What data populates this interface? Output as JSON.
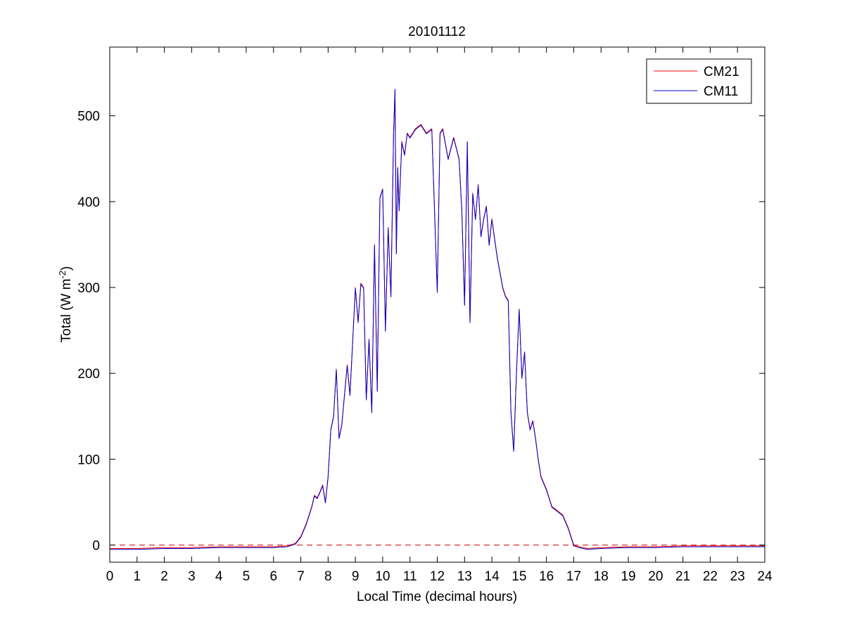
{
  "chart_data": {
    "type": "line",
    "title": "20101112",
    "xlabel": "Local Time (decimal hours)",
    "ylabel": "Total (W m",
    "ylabel_sup": "-2",
    "ylabel_close": ")",
    "xlim": [
      0,
      24
    ],
    "ylim": [
      -20,
      580
    ],
    "xticks": [
      0,
      1,
      2,
      3,
      4,
      5,
      6,
      7,
      8,
      9,
      10,
      11,
      12,
      13,
      14,
      15,
      16,
      17,
      18,
      19,
      20,
      21,
      22,
      23,
      24
    ],
    "yticks": [
      0,
      100,
      200,
      300,
      400,
      500
    ],
    "grid": false,
    "legend_position": "top-right",
    "reference_line": {
      "y": 0,
      "style": "dashed",
      "color": "#cc0000"
    },
    "series": [
      {
        "name": "CM21",
        "color": "#ff0000",
        "x": [
          0,
          1,
          2,
          3,
          4,
          5,
          6,
          6.5,
          6.8,
          7,
          7.2,
          7.4,
          7.5,
          7.6,
          7.7,
          7.8,
          7.9,
          8.0,
          8.1,
          8.2,
          8.3,
          8.4,
          8.5,
          8.6,
          8.7,
          8.8,
          9.0,
          9.1,
          9.2,
          9.3,
          9.4,
          9.5,
          9.6,
          9.7,
          9.8,
          9.9,
          10.0,
          10.1,
          10.2,
          10.3,
          10.4,
          10.45,
          10.5,
          10.55,
          10.6,
          10.7,
          10.8,
          10.9,
          11.0,
          11.2,
          11.4,
          11.6,
          11.8,
          12.0,
          12.1,
          12.2,
          12.4,
          12.6,
          12.8,
          12.9,
          13.0,
          13.1,
          13.2,
          13.3,
          13.4,
          13.5,
          13.6,
          13.7,
          13.8,
          13.9,
          14.0,
          14.2,
          14.4,
          14.5,
          14.6,
          14.7,
          14.8,
          14.9,
          15.0,
          15.1,
          15.2,
          15.3,
          15.4,
          15.5,
          15.6,
          15.7,
          15.8,
          16.0,
          16.2,
          16.4,
          16.6,
          16.8,
          17.0,
          17.2,
          17.5,
          18,
          19,
          20,
          21,
          22,
          23,
          24
        ],
        "y": [
          -4,
          -4,
          -3,
          -3,
          -2,
          -2,
          -2,
          -1,
          2,
          10,
          25,
          45,
          58,
          55,
          62,
          70,
          50,
          80,
          135,
          150,
          205,
          125,
          140,
          175,
          210,
          175,
          300,
          260,
          305,
          300,
          170,
          240,
          155,
          350,
          180,
          405,
          415,
          250,
          370,
          290,
          480,
          530,
          340,
          440,
          390,
          470,
          455,
          480,
          475,
          485,
          490,
          480,
          485,
          295,
          480,
          485,
          450,
          475,
          450,
          390,
          280,
          470,
          260,
          410,
          380,
          420,
          360,
          380,
          395,
          350,
          380,
          335,
          300,
          290,
          285,
          155,
          110,
          200,
          275,
          195,
          225,
          155,
          135,
          145,
          125,
          100,
          80,
          65,
          45,
          40,
          35,
          20,
          0,
          -2,
          -4,
          -3,
          -2,
          -2,
          -1,
          -1,
          -1,
          -1
        ]
      },
      {
        "name": "CM11",
        "color": "#0000cc",
        "x": [
          0,
          1,
          2,
          3,
          4,
          5,
          6,
          6.5,
          6.8,
          7,
          7.2,
          7.4,
          7.5,
          7.6,
          7.7,
          7.8,
          7.9,
          8.0,
          8.1,
          8.2,
          8.3,
          8.4,
          8.5,
          8.6,
          8.7,
          8.8,
          9.0,
          9.1,
          9.2,
          9.3,
          9.4,
          9.5,
          9.6,
          9.7,
          9.8,
          9.9,
          10.0,
          10.1,
          10.2,
          10.3,
          10.4,
          10.45,
          10.5,
          10.55,
          10.6,
          10.7,
          10.8,
          10.9,
          11.0,
          11.2,
          11.4,
          11.6,
          11.8,
          12.0,
          12.1,
          12.2,
          12.4,
          12.6,
          12.8,
          12.9,
          13.0,
          13.1,
          13.2,
          13.3,
          13.4,
          13.5,
          13.6,
          13.7,
          13.8,
          13.9,
          14.0,
          14.2,
          14.4,
          14.5,
          14.6,
          14.7,
          14.8,
          14.9,
          15.0,
          15.1,
          15.2,
          15.3,
          15.4,
          15.5,
          15.6,
          15.7,
          15.8,
          16.0,
          16.2,
          16.4,
          16.6,
          16.8,
          17.0,
          17.2,
          17.5,
          18,
          19,
          20,
          21,
          22,
          23,
          24
        ],
        "y": [
          -5,
          -5,
          -4,
          -4,
          -3,
          -3,
          -3,
          -2,
          1,
          9,
          24,
          44,
          57,
          54,
          61,
          69,
          49,
          79,
          134,
          149,
          204,
          124,
          139,
          174,
          209,
          174,
          299,
          259,
          304,
          299,
          169,
          239,
          154,
          349,
          179,
          404,
          414,
          249,
          369,
          289,
          479,
          531,
          339,
          439,
          389,
          469,
          454,
          479,
          474,
          484,
          489,
          479,
          484,
          294,
          479,
          484,
          449,
          474,
          449,
          389,
          279,
          469,
          259,
          409,
          379,
          419,
          359,
          379,
          394,
          349,
          379,
          334,
          299,
          289,
          284,
          154,
          109,
          199,
          274,
          194,
          224,
          154,
          134,
          144,
          124,
          99,
          79,
          64,
          44,
          39,
          34,
          19,
          -1,
          -3,
          -5,
          -4,
          -3,
          -3,
          -2,
          -2,
          -2,
          -2
        ]
      }
    ]
  }
}
